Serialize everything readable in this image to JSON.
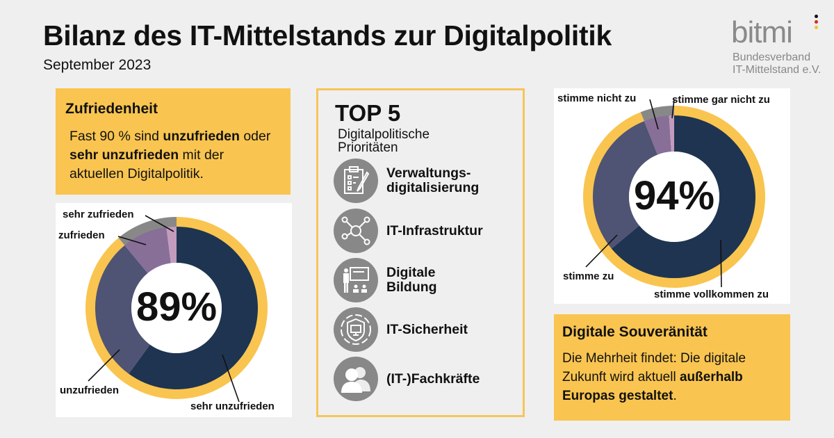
{
  "header": {
    "title": "Bilanz des IT-Mittelstands zur Digitalpolitik",
    "subtitle": "September 2023"
  },
  "logo": {
    "wordmark": "bitmi",
    "line1": "Bundesverband",
    "line2": "IT-Mittelstand e.V."
  },
  "satisfaction": {
    "heading": "Zufriedenheit",
    "text1": "Fast 90 % sind ",
    "bold1": "unzufrieden",
    "text2": " oder ",
    "bold2": "sehr unzufrieden",
    "text3": " mit der aktuellen Digitalpolitik."
  },
  "top5": {
    "heading": "TOP 5",
    "subheading_line1": "Digitalpolitische",
    "subheading_line2": "Prioritäten",
    "items": [
      {
        "line1": "Verwaltungs-",
        "line2": "digitalisierung",
        "icon": "clipboard-checklist-icon"
      },
      {
        "line1": "IT-Infrastruktur",
        "line2": "",
        "icon": "network-hub-icon"
      },
      {
        "line1": "Digitale",
        "line2": "Bildung",
        "icon": "presentation-teacher-icon"
      },
      {
        "line1": "IT-Sicherheit",
        "line2": "",
        "icon": "shield-monitor-icon"
      },
      {
        "line1": "(IT-)Fachkräfte",
        "line2": "",
        "icon": "people-icon"
      }
    ]
  },
  "sovereignty": {
    "heading": "Digitale Souveränität",
    "text1": "Die Mehrheit findet: Die digitale Zukunft wird aktuell ",
    "bold": "außerhalb Europas gestaltet",
    "text2": "."
  },
  "colors": {
    "accent": "#f9c550",
    "navy": "#1e3451",
    "slate": "#4f5374",
    "purple": "#876f98",
    "pink": "#c39bbd",
    "gray": "#888888"
  },
  "chart_data": [
    {
      "type": "pie",
      "variant": "donut",
      "center_label": "89%",
      "highlight_share": 89,
      "categories": [
        "sehr unzufrieden",
        "unzufrieden",
        "zufrieden",
        "sehr zufrieden"
      ],
      "values": [
        60,
        29,
        9,
        2
      ]
    },
    {
      "type": "pie",
      "variant": "donut",
      "center_label": "94%",
      "highlight_share": 94,
      "categories": [
        "stimme vollkommen zu",
        "stimme zu",
        "stimme nicht zu",
        "stimme gar nicht zu"
      ],
      "values": [
        64,
        30,
        5,
        1
      ]
    }
  ]
}
